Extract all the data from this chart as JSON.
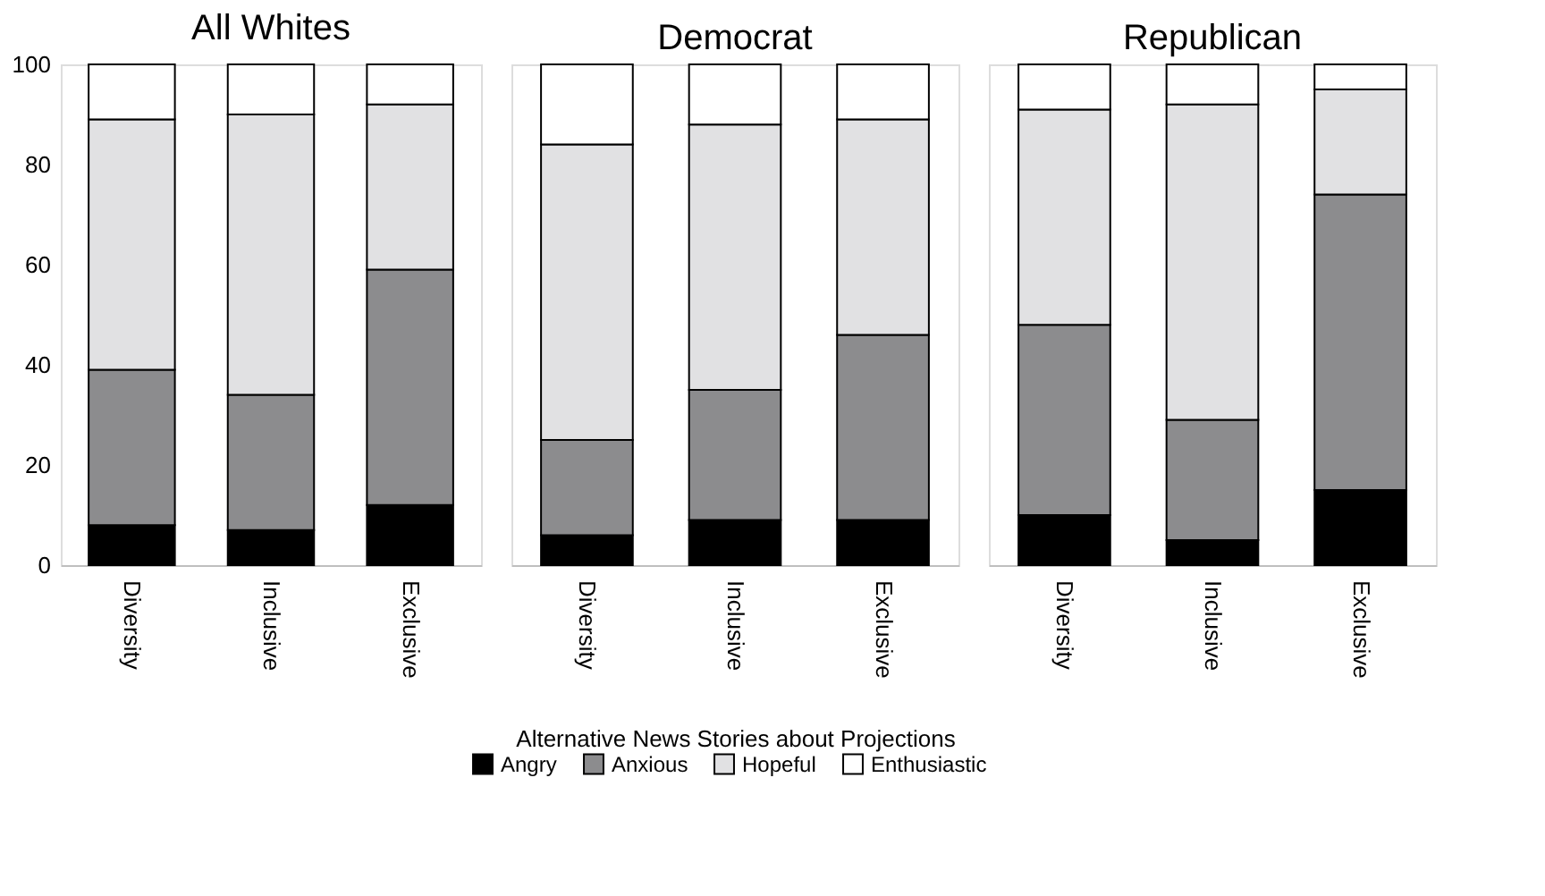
{
  "chart_data": [
    {
      "type": "bar",
      "stacked": true,
      "title": "All Whites",
      "categories": [
        "Diversity",
        "Inclusive",
        "Exclusive"
      ],
      "ylim": [
        0,
        100
      ],
      "yticks": [
        0,
        20,
        40,
        60,
        80,
        100
      ],
      "grid": false,
      "legend": "bottom",
      "series": [
        {
          "name": "Angry",
          "color": "#000000",
          "values": [
            8,
            7,
            12
          ]
        },
        {
          "name": "Anxious",
          "color": "#8c8c8e",
          "values": [
            31,
            27,
            47
          ]
        },
        {
          "name": "Hopeful",
          "color": "#e1e1e3",
          "values": [
            50,
            56,
            33
          ]
        },
        {
          "name": "Enthusiastic",
          "color": "#ffffff",
          "values": [
            11,
            10,
            8
          ]
        }
      ]
    },
    {
      "type": "bar",
      "stacked": true,
      "title": "Democrat",
      "xlabel": "Alternative News Stories about Projections",
      "categories": [
        "Diversity",
        "Inclusive",
        "Exclusive"
      ],
      "ylim": [
        0,
        100
      ],
      "yticks": [
        0,
        20,
        40,
        60,
        80,
        100
      ],
      "tick_labels": "x",
      "grid": false,
      "legend": "bottom",
      "series": [
        {
          "name": "Angry",
          "color": "#000000",
          "values": [
            6,
            9,
            9
          ]
        },
        {
          "name": "Anxious",
          "color": "#8c8c8e",
          "values": [
            19,
            26,
            37
          ]
        },
        {
          "name": "Hopeful",
          "color": "#e1e1e3",
          "values": [
            59,
            53,
            43
          ]
        },
        {
          "name": "Enthusiastic",
          "color": "#ffffff",
          "values": [
            16,
            12,
            11
          ]
        }
      ]
    },
    {
      "type": "bar",
      "stacked": true,
      "title": "Republican",
      "categories": [
        "Diversity",
        "Inclusive",
        "Exclusive"
      ],
      "ylim": [
        0,
        100
      ],
      "yticks": [
        0,
        20,
        40,
        60,
        80,
        100
      ],
      "tick_labels": "x",
      "grid": false,
      "legend": "bottom",
      "series": [
        {
          "name": "Angry",
          "color": "#000000",
          "values": [
            10,
            5,
            15
          ]
        },
        {
          "name": "Anxious",
          "color": "#8c8c8e",
          "values": [
            38,
            24,
            59
          ]
        },
        {
          "name": "Hopeful",
          "color": "#e1e1e3",
          "values": [
            43,
            63,
            21
          ]
        },
        {
          "name": "Enthusiastic",
          "color": "#ffffff",
          "values": [
            9,
            8,
            5
          ]
        }
      ]
    }
  ]
}
